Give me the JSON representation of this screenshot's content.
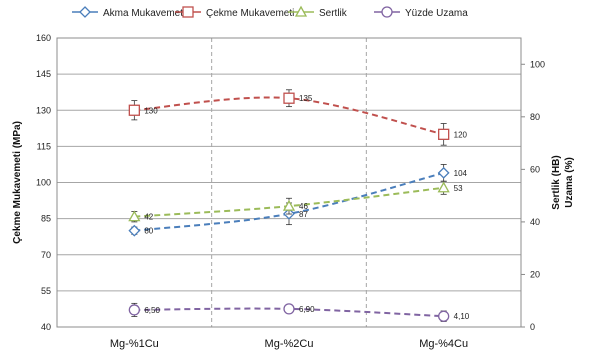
{
  "chart_data": {
    "type": "line",
    "categories": [
      "Mg-%1Cu",
      "Mg-%2Cu",
      "Mg-%4Cu"
    ],
    "left_axis": {
      "label": "Çekme Mukavemeti (MPa)",
      "range": [
        40,
        160
      ],
      "ticks": [
        "40",
        "55",
        "70",
        "85",
        "100",
        "115",
        "130",
        "145",
        "160"
      ]
    },
    "right_axis": {
      "label_top": "Sertlik (HB)",
      "label_bottom": "Uzama (%)",
      "range": [
        0,
        110
      ],
      "ticks": [
        "0",
        "20",
        "40",
        "60",
        "80",
        "100"
      ]
    },
    "legend_position": "top",
    "series": [
      {
        "name": "Akma Mukavemeti",
        "axis": "left",
        "color": "#4a7ebb",
        "marker": "diamond",
        "values": [
          80,
          87,
          104
        ],
        "labels": [
          "80",
          "87",
          "104"
        ],
        "err": [
          1.5,
          4.5,
          3.5
        ]
      },
      {
        "name": "Çekme Mukavemeti",
        "axis": "left",
        "color": "#c0504d",
        "marker": "square",
        "values": [
          130,
          135,
          120
        ],
        "labels": [
          "130",
          "135",
          "120"
        ],
        "err": [
          4.0,
          3.5,
          4.5
        ]
      },
      {
        "name": "Sertlik",
        "axis": "right",
        "color": "#9bbb59",
        "marker": "triangle",
        "values": [
          42,
          46,
          53
        ],
        "labels": [
          "42",
          "46",
          "53"
        ],
        "err": [
          2.0,
          3.0,
          2.5
        ]
      },
      {
        "name": "Yüzde Uzama",
        "axis": "right",
        "color": "#8064a2",
        "marker": "circle",
        "values": [
          6.5,
          6.9,
          4.1
        ],
        "labels": [
          "6,50",
          "6,90",
          "4,10"
        ],
        "err": [
          2.5,
          1.5,
          2.0
        ]
      }
    ]
  }
}
